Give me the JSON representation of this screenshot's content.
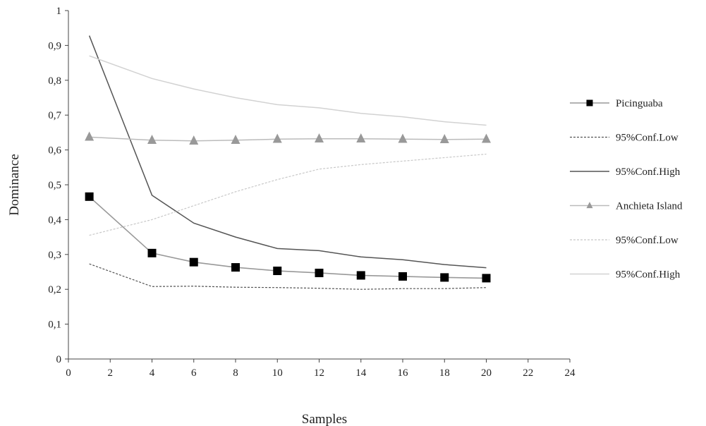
{
  "chart_data": {
    "type": "line",
    "title": "",
    "xlabel": "Samples",
    "ylabel": "Dominance",
    "xlim": [
      0,
      24
    ],
    "ylim": [
      0,
      1
    ],
    "x_ticks": [
      0,
      2,
      4,
      6,
      8,
      10,
      12,
      14,
      16,
      18,
      20,
      22,
      24
    ],
    "y_ticks": [
      0,
      0.1,
      0.2,
      0.3,
      0.4,
      0.5,
      0.6,
      0.7,
      0.8,
      0.9,
      1
    ],
    "y_tick_labels": [
      "0",
      "0,1",
      "0,2",
      "0,3",
      "0,4",
      "0,5",
      "0,6",
      "0,7",
      "0,8",
      "0,9",
      "1"
    ],
    "x_tick_labels": [
      "0",
      "2",
      "4",
      "6",
      "8",
      "10",
      "12",
      "14",
      "16",
      "18",
      "20",
      "22",
      "24"
    ],
    "grid": false,
    "legend_position": "right",
    "x": [
      1,
      4,
      6,
      8,
      10,
      12,
      14,
      16,
      18,
      20
    ],
    "series": [
      {
        "name": "Picinguaba",
        "color": "#000000",
        "line": "#999999",
        "dash": "",
        "marker": "square",
        "width": 1.6,
        "values": [
          0.466,
          0.304,
          0.278,
          0.263,
          0.253,
          0.247,
          0.24,
          0.237,
          0.234,
          0.232
        ]
      },
      {
        "name": "95%Conf.Low",
        "color": "#555555",
        "line": "#555555",
        "dash": "3,2",
        "marker": "none",
        "width": 1.2,
        "values": [
          0.273,
          0.208,
          0.209,
          0.206,
          0.205,
          0.203,
          0.2,
          0.202,
          0.202,
          0.205
        ]
      },
      {
        "name": "95%Conf.High",
        "color": "#555555",
        "line": "#555555",
        "dash": "",
        "marker": "none",
        "width": 1.5,
        "values": [
          0.928,
          0.47,
          0.39,
          0.35,
          0.317,
          0.311,
          0.293,
          0.285,
          0.271,
          0.262
        ]
      },
      {
        "name": "Anchieta Island",
        "color": "#999999",
        "line": "#bbbbbb",
        "dash": "",
        "marker": "triangle",
        "width": 1.5,
        "values": [
          0.637,
          0.628,
          0.626,
          0.628,
          0.631,
          0.632,
          0.632,
          0.631,
          0.63,
          0.631
        ]
      },
      {
        "name": "95%Conf.Low",
        "color": "#c8c8c8",
        "line": "#c8c8c8",
        "dash": "3,2",
        "marker": "none",
        "width": 1.2,
        "values": [
          0.355,
          0.4,
          0.44,
          0.48,
          0.515,
          0.545,
          0.558,
          0.568,
          0.578,
          0.588
        ]
      },
      {
        "name": "95%Conf.High",
        "color": "#d2d2d2",
        "line": "#d2d2d2",
        "dash": "",
        "marker": "none",
        "width": 1.5,
        "values": [
          0.87,
          0.805,
          0.775,
          0.75,
          0.73,
          0.721,
          0.705,
          0.695,
          0.681,
          0.671
        ]
      }
    ]
  }
}
